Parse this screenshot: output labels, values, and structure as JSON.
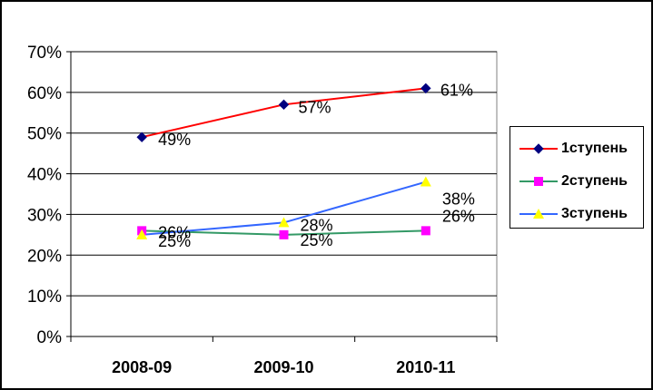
{
  "chart_data": {
    "type": "line",
    "title": "",
    "xlabel": "",
    "ylabel": "",
    "categories": [
      "2008-09",
      "2009-10",
      "2010-11"
    ],
    "ylim": [
      0,
      70
    ],
    "y_ticks": [
      "0%",
      "10%",
      "20%",
      "30%",
      "40%",
      "50%",
      "60%",
      "70%"
    ],
    "grid": true,
    "legend_position": "right",
    "series": [
      {
        "name": "1ступень",
        "values": [
          49,
          57,
          61
        ],
        "labels": [
          "49%",
          "57%",
          "61%"
        ],
        "line_color": "#ff0000",
        "marker": "diamond",
        "marker_color": "#000080"
      },
      {
        "name": "2ступень",
        "values": [
          26,
          25,
          26
        ],
        "labels": [
          "26%",
          "25%",
          "26%"
        ],
        "line_color": "#339966",
        "marker": "square",
        "marker_color": "#ff00ff"
      },
      {
        "name": "3ступень",
        "values": [
          25,
          28,
          38
        ],
        "labels": [
          "25%",
          "28%",
          "38%"
        ],
        "line_color": "#3366ff",
        "marker": "triangle",
        "marker_color": "#ffff00"
      }
    ]
  }
}
